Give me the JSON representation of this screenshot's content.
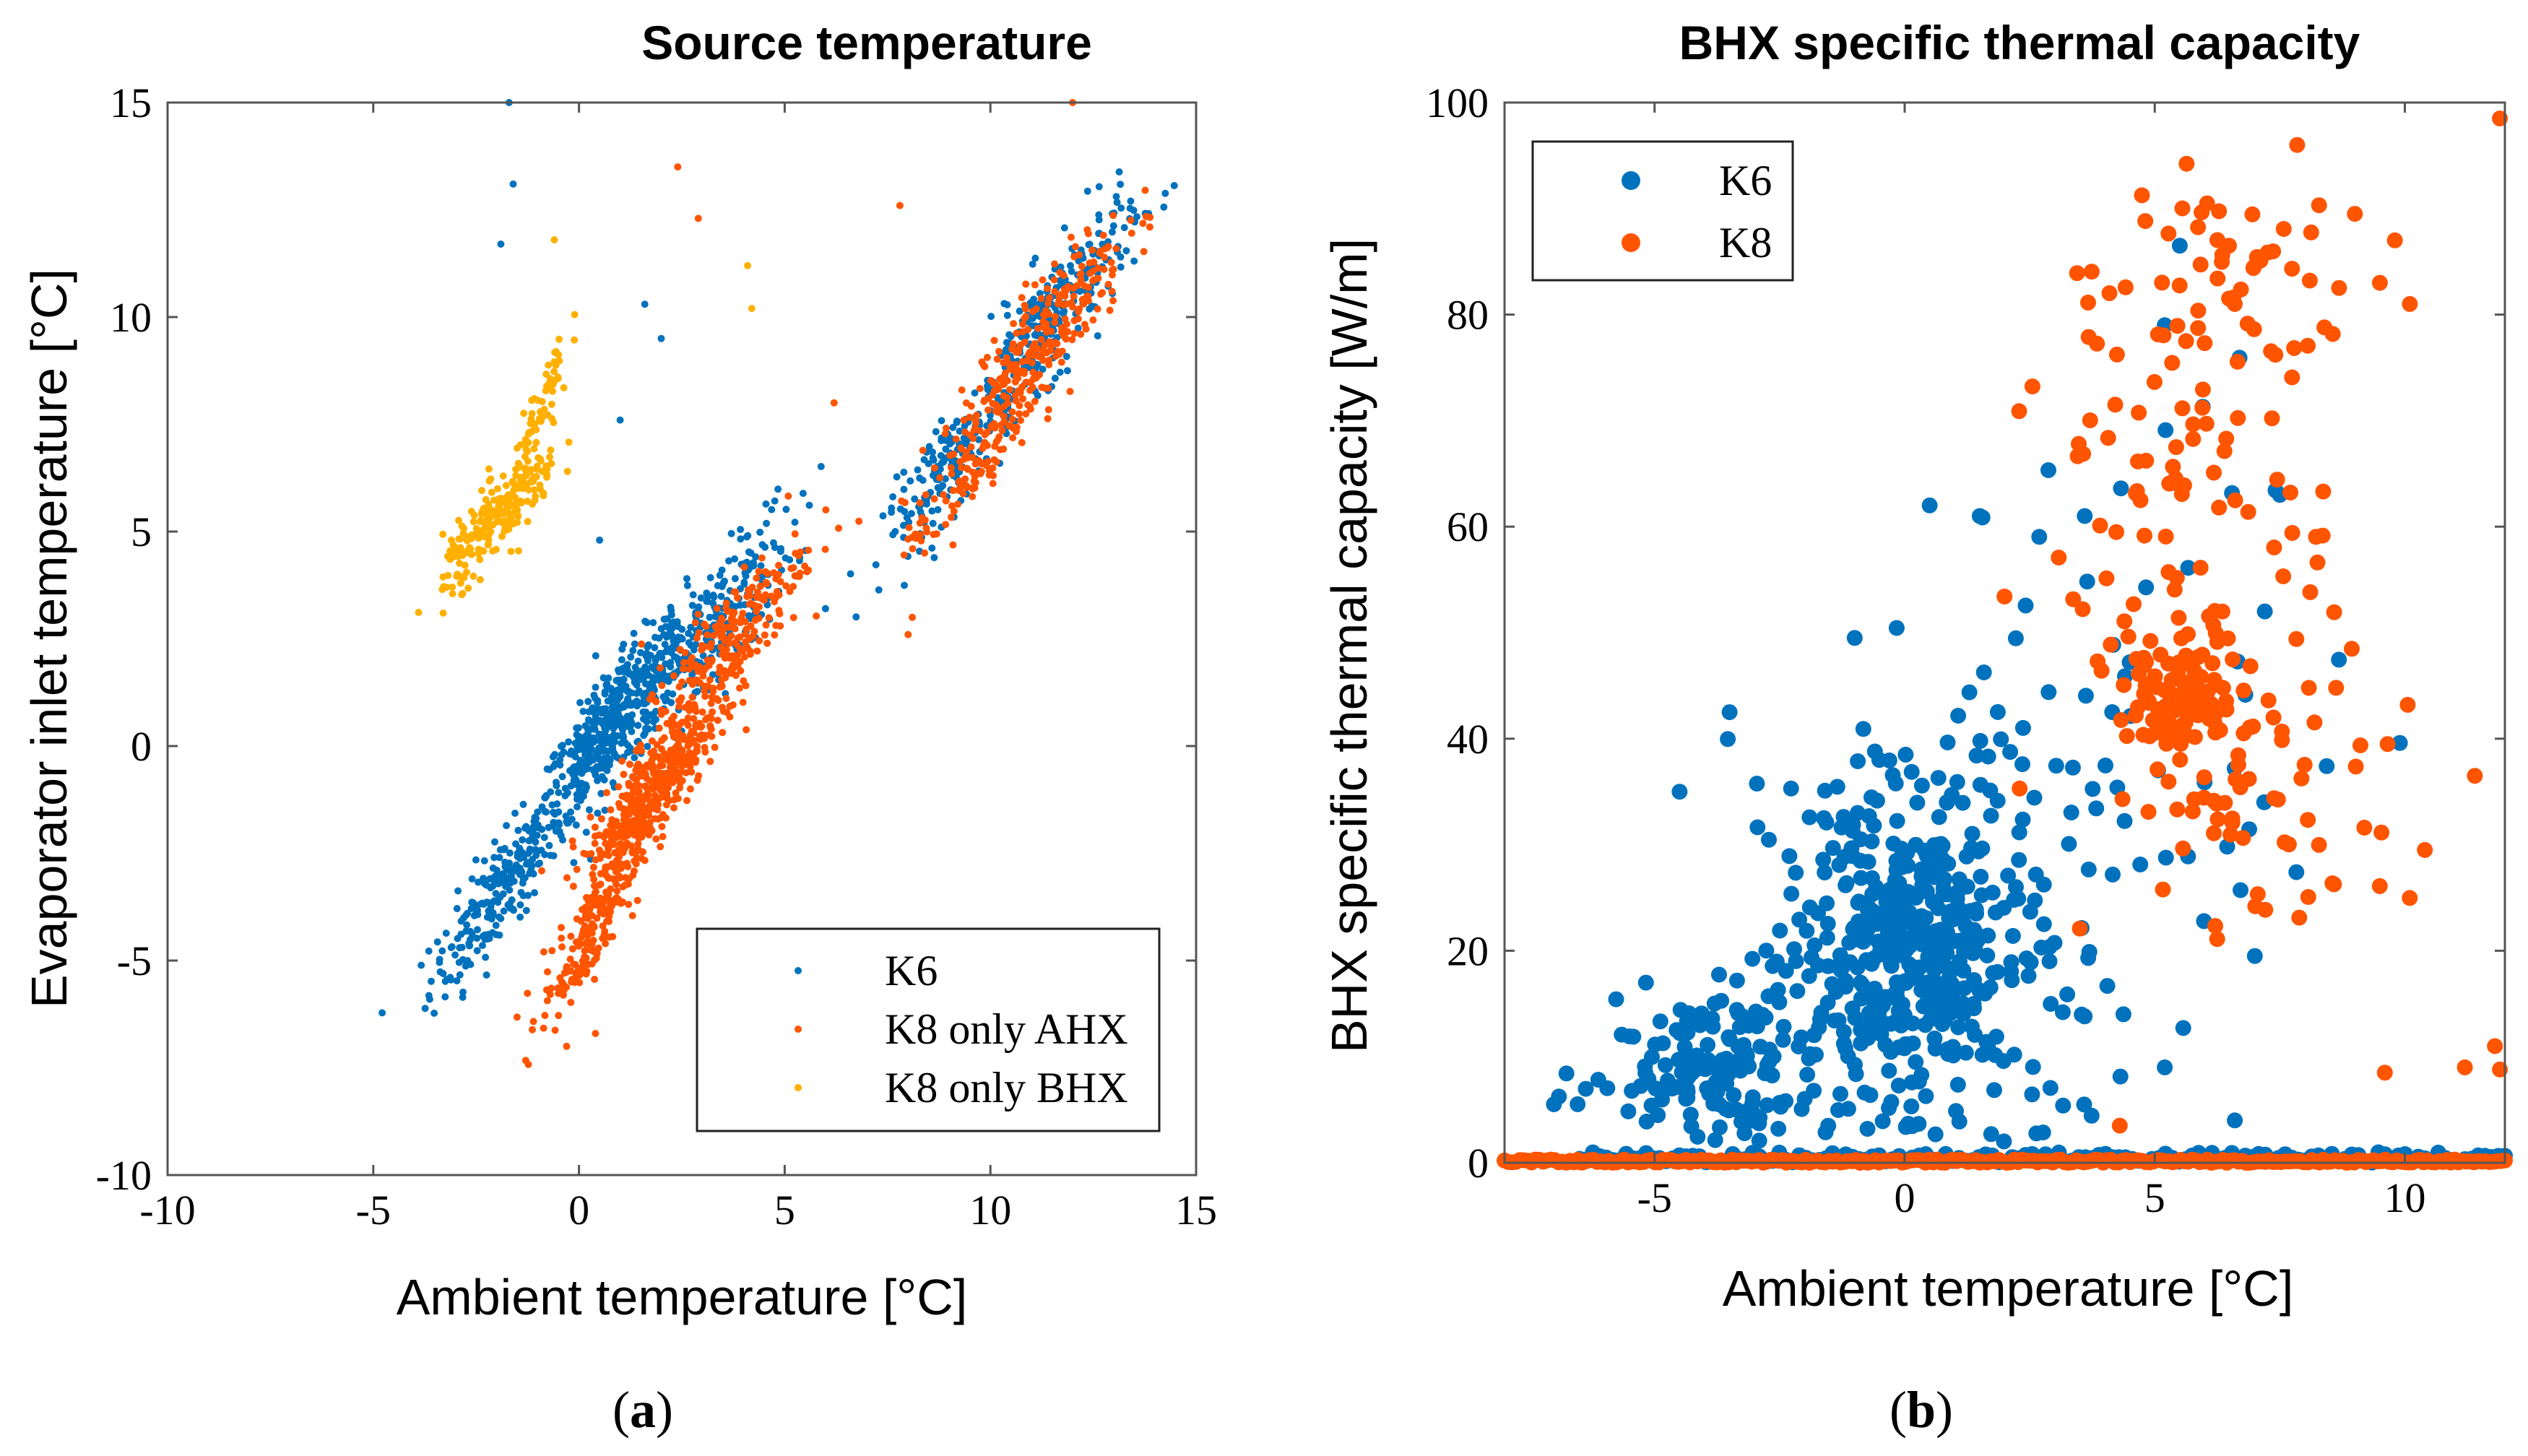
{
  "colors": {
    "k6": "#0072BD",
    "k8": "#FF5400",
    "k8_bhx": "#FFB000"
  },
  "panels": {
    "a": {
      "label_open": "(",
      "label_letter": "a",
      "label_close": ")"
    },
    "b": {
      "label_open": "(",
      "label_letter": "b",
      "label_close": ")"
    }
  },
  "chart_data": [
    {
      "type": "scatter",
      "title": "Source temperature",
      "xlabel": "Ambient temperature [°C]",
      "ylabel": "Evaporator inlet temperature [°C]",
      "xlim": [
        -10,
        15
      ],
      "ylim": [
        -10,
        15
      ],
      "xticks": [
        -10,
        -5,
        0,
        5,
        10,
        15
      ],
      "yticks": [
        -10,
        -5,
        0,
        5,
        10,
        15
      ],
      "grid": false,
      "legend_position": "bottom-right",
      "legend": [
        "K6",
        "K8 only AHX",
        "K8 only BHX"
      ],
      "series": [
        {
          "name": "K6",
          "color_key": "k6",
          "clusters": [
            {
              "cx": -2.0,
              "cy": -3.5,
              "sx": 0.8,
              "sy": 1.3,
              "n": 220
            },
            {
              "cx": 0.8,
              "cy": 0.5,
              "sx": 0.9,
              "sy": 1.4,
              "n": 500
            },
            {
              "cx": 3.0,
              "cy": 2.5,
              "sx": 1.1,
              "sy": 1.6,
              "n": 260
            },
            {
              "cx": 9.0,
              "cy": 6.5,
              "sx": 0.8,
              "sy": 1.2,
              "n": 150
            },
            {
              "cx": 11.5,
              "cy": 10.0,
              "sx": 1.0,
              "sy": 1.5,
              "n": 260
            }
          ],
          "points": [
            [
              -1.7,
              15.0
            ],
            [
              -1.6,
              13.1
            ],
            [
              -1.9,
              11.7
            ],
            [
              1.6,
              10.3
            ],
            [
              1.0,
              7.6
            ],
            [
              2.0,
              9.5
            ],
            [
              0.5,
              4.8
            ]
          ]
        },
        {
          "name": "K8 only AHX",
          "color_key": "k8",
          "clusters": [
            {
              "cx": 0.3,
              "cy": -4.3,
              "sx": 0.6,
              "sy": 1.2,
              "n": 200
            },
            {
              "cx": 1.8,
              "cy": -1.0,
              "sx": 0.8,
              "sy": 1.2,
              "n": 420
            },
            {
              "cx": 3.5,
              "cy": 2.2,
              "sx": 1.0,
              "sy": 1.5,
              "n": 260
            },
            {
              "cx": 9.5,
              "cy": 6.5,
              "sx": 0.8,
              "sy": 1.3,
              "n": 130
            },
            {
              "cx": 11.3,
              "cy": 9.6,
              "sx": 1.0,
              "sy": 1.5,
              "n": 260
            }
          ],
          "points": [
            [
              2.4,
              13.5
            ],
            [
              2.9,
              12.3
            ],
            [
              7.8,
              12.6
            ],
            [
              0.4,
              -6.7
            ],
            [
              -0.3,
              -7.0
            ],
            [
              6.2,
              8.0
            ],
            [
              8.1,
              3.0
            ],
            [
              8.0,
              2.6
            ],
            [
              12.0,
              15.0
            ]
          ]
        },
        {
          "name": "K8 only BHX",
          "color_key": "k8_bhx",
          "clusters": [
            {
              "cx": -1.9,
              "cy": 5.4,
              "sx": 0.7,
              "sy": 0.9,
              "n": 230
            },
            {
              "cx": -0.9,
              "cy": 7.8,
              "sx": 0.35,
              "sy": 1.2,
              "n": 60
            }
          ],
          "points": [
            [
              -0.6,
              11.8
            ],
            [
              4.1,
              11.2
            ],
            [
              4.2,
              10.2
            ],
            [
              -3.3,
              3.1
            ],
            [
              -3.1,
              4.8
            ]
          ]
        }
      ]
    },
    {
      "type": "scatter",
      "title": "BHX specific thermal capacity",
      "xlabel": "Ambient temperature [°C]",
      "ylabel": "BHX specific thermal capacity [W/m]",
      "xlim": [
        -8,
        12
      ],
      "ylim": [
        0,
        100
      ],
      "xticks": [
        -5,
        0,
        5,
        10
      ],
      "yticks": [
        0,
        20,
        40,
        60,
        80,
        100
      ],
      "grid": false,
      "legend_position": "top-left",
      "legend": [
        "K6",
        "K8"
      ],
      "series": [
        {
          "name": "K6",
          "color_key": "k6",
          "clusters": [
            {
              "cx": -4.0,
              "cy": 9.5,
              "sx": 1.1,
              "sy": 3.5,
              "n": 150
            },
            {
              "cx": 0.0,
              "cy": 20.0,
              "sx": 1.3,
              "sy": 8.0,
              "n": 420
            },
            {
              "cx": 2.0,
              "cy": 30.0,
              "sx": 1.8,
              "sy": 12.0,
              "n": 80
            },
            {
              "cx": 5.5,
              "cy": 45.0,
              "sx": 1.5,
              "sy": 18.0,
              "n": 25
            }
          ],
          "zero_line": {
            "from": -6.5,
            "to": 12,
            "n": 140,
            "jitter": 1.0
          },
          "points": [
            [
              0.5,
              62.0
            ],
            [
              1.5,
              61.0
            ],
            [
              -1.0,
              49.5
            ],
            [
              -4.5,
              35.0
            ],
            [
              -3.5,
              42.5
            ],
            [
              5.5,
              86.5
            ],
            [
              5.2,
              79.0
            ],
            [
              7.5,
              63.0
            ],
            [
              7.2,
              52.0
            ],
            [
              9.9,
              39.6
            ],
            [
              6.6,
              4.0
            ],
            [
              5.2,
              9.0
            ],
            [
              7.0,
              19.5
            ],
            [
              3.6,
              61.0
            ]
          ]
        },
        {
          "name": "K8",
          "color_key": "k8",
          "clusters": [
            {
              "cx": 5.5,
              "cy": 43.5,
              "sx": 0.5,
              "sy": 2.5,
              "n": 90
            },
            {
              "cx": 5.8,
              "cy": 62.0,
              "sx": 1.4,
              "sy": 13.0,
              "n": 110
            },
            {
              "cx": 7.0,
              "cy": 34.0,
              "sx": 1.6,
              "sy": 7.0,
              "n": 60
            },
            {
              "cx": 6.5,
              "cy": 83.0,
              "sx": 1.6,
              "sy": 5.5,
              "n": 45
            }
          ],
          "zero_line": {
            "from": -8,
            "to": 12,
            "n": 260,
            "jitter": 0.3
          },
          "points": [
            [
              11.9,
              98.5
            ],
            [
              10.1,
              81.0
            ],
            [
              9.8,
              87.0
            ],
            [
              9.5,
              83.0
            ],
            [
              11.4,
              36.5
            ],
            [
              10.4,
              29.5
            ],
            [
              9.6,
              8.5
            ],
            [
              11.2,
              9.0
            ],
            [
              11.8,
              11.0
            ],
            [
              4.3,
              3.5
            ],
            [
              11.9,
              8.8
            ],
            [
              9.0,
              89.5
            ]
          ]
        }
      ]
    }
  ]
}
